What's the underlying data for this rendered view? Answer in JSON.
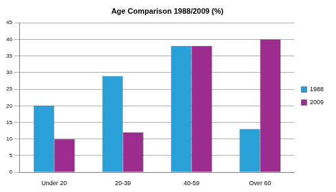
{
  "chart_data": {
    "type": "bar",
    "title": "Age Comparison 1988/2009 (%)",
    "categories": [
      "Under 20",
      "20-39",
      "40-59",
      "Over 60"
    ],
    "series": [
      {
        "name": "1988",
        "color": "#2b9fd8",
        "values": [
          20,
          29,
          38,
          13
        ]
      },
      {
        "name": "2009",
        "color": "#9b2d8f",
        "values": [
          10,
          12,
          38,
          40
        ]
      }
    ],
    "ylim": [
      0,
      45
    ],
    "yticks": [
      0,
      5,
      10,
      15,
      20,
      25,
      30,
      35,
      40,
      45
    ],
    "grid": true,
    "legend": "right"
  }
}
